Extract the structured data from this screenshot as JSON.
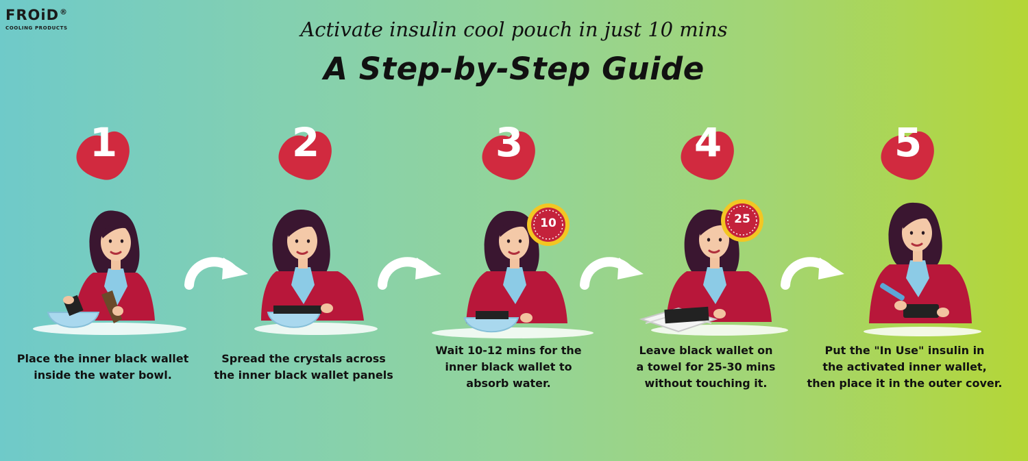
{
  "brand": {
    "name": "FROiD",
    "registered": "®",
    "tagline": "COOLING PRODUCTS"
  },
  "header": {
    "subtitle": "Activate insulin cool pouch in just 10 mins",
    "title": "A Step-by-Step Guide"
  },
  "colors": {
    "badge": "#d12a3f",
    "jacket": "#b8173a",
    "bowl": "#a9d8ee",
    "timer_ring": "#f3c623",
    "timer_face": "#c4223b"
  },
  "steps": [
    {
      "number": "1",
      "caption": [
        "Place the inner black wallet",
        "inside the water bowl."
      ]
    },
    {
      "number": "2",
      "caption": [
        "Spread the crystals across",
        "the inner black wallet panels"
      ]
    },
    {
      "number": "3",
      "timer": "10",
      "caption": [
        "Wait 10-12 mins for the",
        "inner black wallet to",
        "absorb water."
      ]
    },
    {
      "number": "4",
      "timer": "25",
      "caption": [
        "Leave black wallet on",
        "a towel for 25-30 mins",
        "without touching it."
      ]
    },
    {
      "number": "5",
      "caption": [
        "Put the \"In Use\" insulin in",
        "the activated inner wallet,",
        "then place it in the outer cover."
      ]
    }
  ],
  "icons": {
    "arrow": "curved-arrow-icon",
    "badge": "number-badge-icon",
    "timer": "timer-icon"
  }
}
